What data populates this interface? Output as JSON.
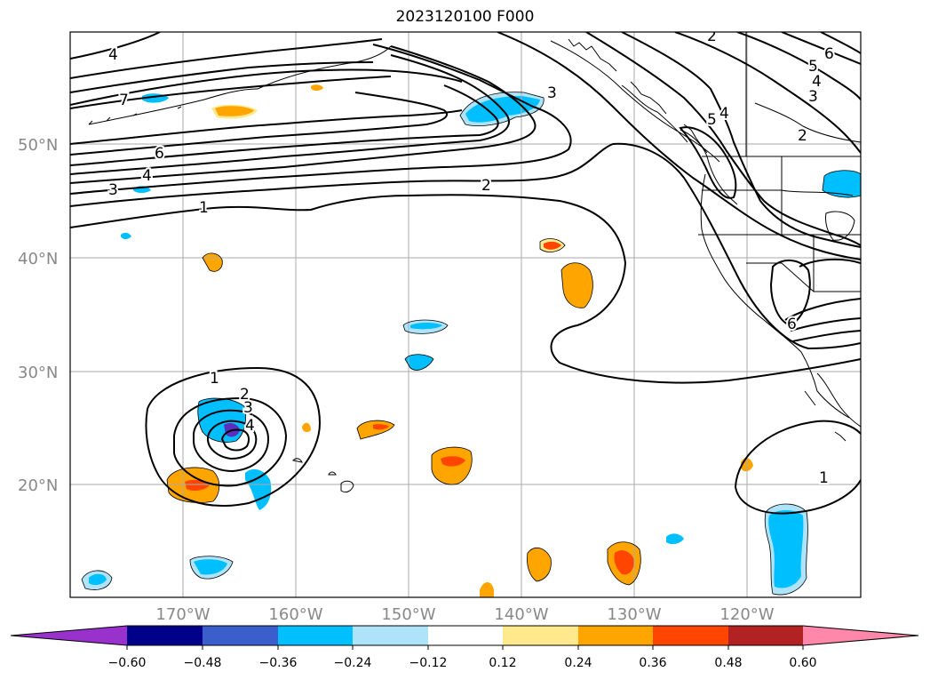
{
  "title": "2023120100 F000",
  "lat_labels": [
    "50°N",
    "40°N",
    "30°N",
    "20°N"
  ],
  "lon_labels": [
    "170°W",
    "160°W",
    "150°W",
    "140°W",
    "130°W",
    "120°W"
  ],
  "colorbar": {
    "colors": [
      "#9932cc",
      "#00008b",
      "#3a5fcd",
      "#00bfff",
      "#aee3fa",
      "#ffffff",
      "#ffe98c",
      "#ffa500",
      "#ff4500",
      "#b22222",
      "#ff88aa"
    ],
    "tick_labels": [
      "−0.60",
      "−0.48",
      "−0.36",
      "−0.24",
      "−0.12",
      "0.12",
      "0.24",
      "0.36",
      "0.48",
      "0.60"
    ]
  },
  "contour_labels": [
    "4",
    "7",
    "6",
    "4",
    "3",
    "1",
    "2",
    "3",
    "2",
    "5",
    "4",
    "3",
    "4",
    "5",
    "6",
    "2",
    "6",
    "1",
    "2",
    "3",
    "4",
    "1"
  ]
}
